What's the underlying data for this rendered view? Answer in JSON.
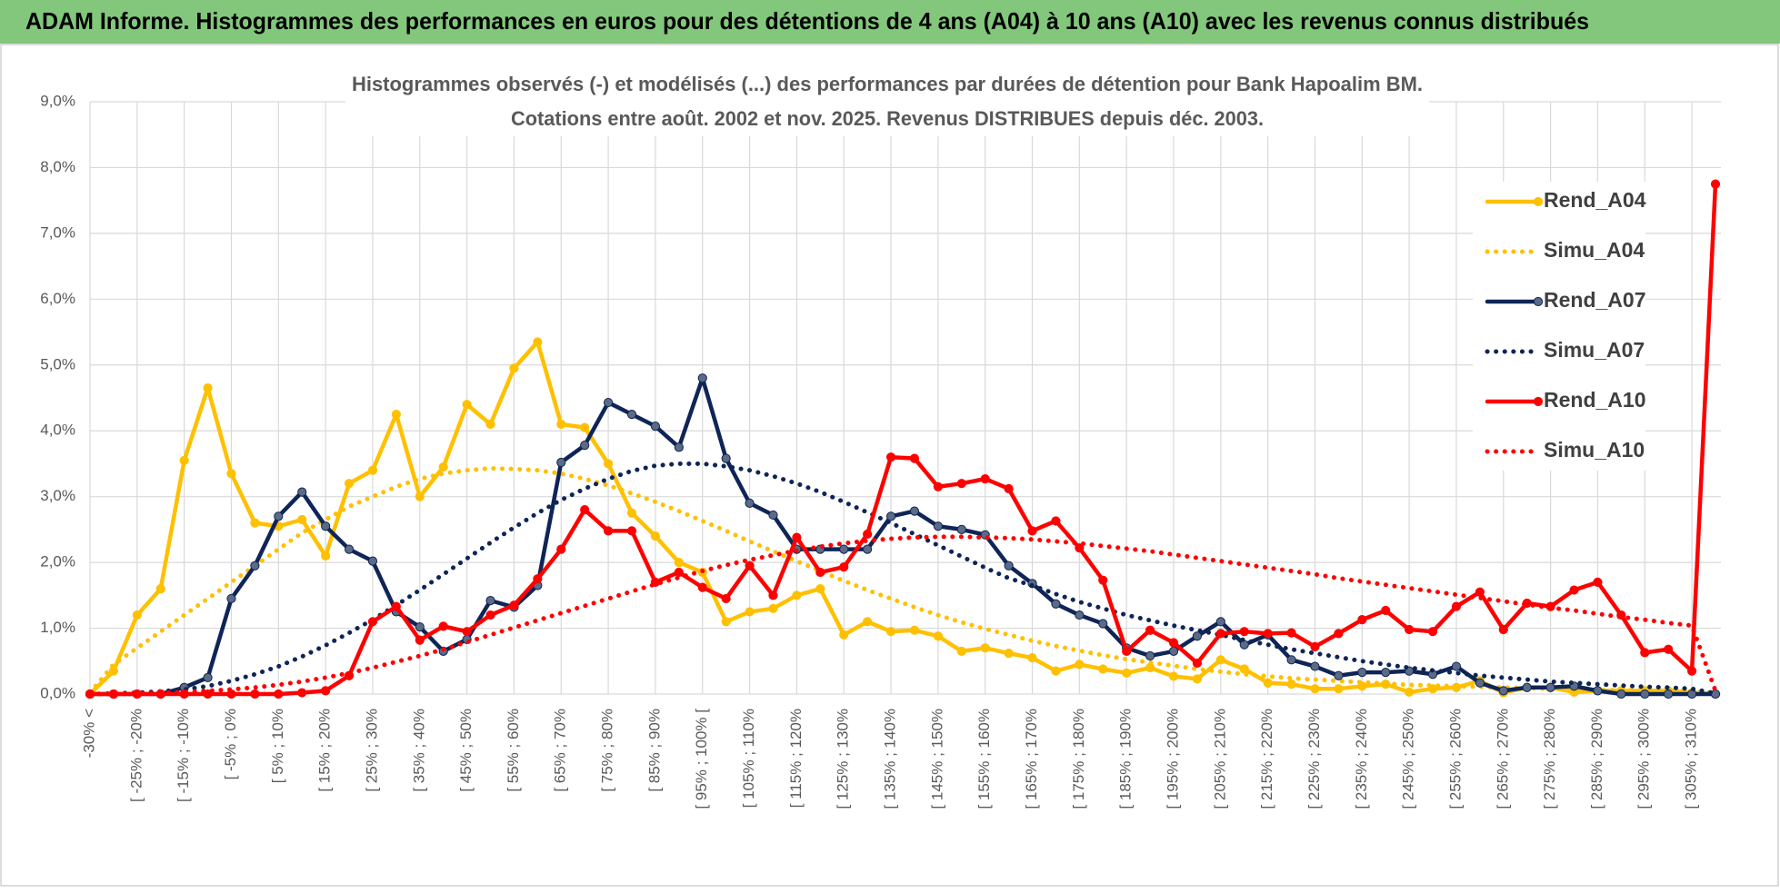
{
  "header": {
    "title": "ADAM Informe. Histogrammes des performances en euros pour des détentions de 4 ans (A04) à 10 ans (A10) avec les revenus connus distribués"
  },
  "chart_data": {
    "type": "line",
    "title": "Histogrammes observés (-) et modélisés (...) des performances par durées de détention pour Bank Hapoalim BM.",
    "subtitle": "Cotations entre août. 2002 et nov. 2025. Revenus DISTRIBUES depuis déc. 2003.",
    "categories": [
      "-30% <",
      null,
      "[ -25% ; -20%",
      null,
      "[ -15% ; -10%",
      null,
      "[ -5% ; 0%",
      null,
      "[ 5% ; 10%",
      null,
      "[ 15% ; 20%",
      null,
      "[ 25% ; 30%",
      null,
      "[ 35% ; 40%",
      null,
      "[ 45% ; 50%",
      null,
      "[ 55% ; 60%",
      null,
      "[ 65% ; 70%",
      null,
      "[ 75% ; 80%",
      null,
      "[ 85% ; 90%",
      null,
      "[ 95% ; 100% [",
      null,
      "[ 105% ; 110%",
      null,
      "[ 115% ; 120%",
      null,
      "[ 125% ; 130%",
      null,
      "[ 135% ; 140%",
      null,
      "[ 145% ; 150%",
      null,
      "[ 155% ; 160%",
      null,
      "[ 165% ; 170%",
      null,
      "[ 175% ; 180%",
      null,
      "[ 185% ; 190%",
      null,
      "[ 195% ; 200%",
      null,
      "[ 205% ; 210%",
      null,
      "[ 215% ; 220%",
      null,
      "[ 225% ; 230%",
      null,
      "[ 235% ; 240%",
      null,
      "[ 245% ; 250%",
      null,
      "[ 255% ; 260%",
      null,
      "[ 265% ; 270%",
      null,
      "[ 275% ; 280%",
      null,
      "[ 285% ; 290%",
      null,
      "[ 295% ; 300%",
      null,
      "[ 305% ; 310%",
      null
    ],
    "ylim": [
      0,
      9
    ],
    "yticks": [
      {
        "value": 0,
        "label": "0,0%"
      },
      {
        "value": 1,
        "label": "1,0%"
      },
      {
        "value": 2,
        "label": "2,0%"
      },
      {
        "value": 3,
        "label": "3,0%"
      },
      {
        "value": 4,
        "label": "4,0%"
      },
      {
        "value": 5,
        "label": "5,0%"
      },
      {
        "value": 6,
        "label": "6,0%"
      },
      {
        "value": 7,
        "label": "7,0%"
      },
      {
        "value": 8,
        "label": "8,0%"
      },
      {
        "value": 9,
        "label": "9,0%"
      }
    ],
    "grid": true,
    "legend": "right",
    "series": [
      {
        "name": "Rend_A04",
        "color": "#ffc000",
        "style": "solid",
        "markers": true,
        "marker_color": "#ffc000",
        "values": [
          0,
          0.35,
          1.2,
          1.6,
          3.55,
          4.65,
          3.35,
          2.6,
          2.55,
          2.65,
          2.1,
          3.2,
          3.4,
          4.25,
          3.0,
          3.45,
          4.4,
          4.1,
          4.95,
          5.35,
          4.1,
          4.05,
          3.5,
          2.75,
          2.4,
          2.0,
          1.85,
          1.1,
          1.25,
          1.3,
          1.5,
          1.6,
          0.9,
          1.1,
          0.95,
          0.97,
          0.88,
          0.65,
          0.7,
          0.62,
          0.55,
          0.35,
          0.45,
          0.38,
          0.32,
          0.4,
          0.27,
          0.23,
          0.52,
          0.38,
          0.17,
          0.15,
          0.08,
          0.08,
          0.12,
          0.15,
          0.03,
          0.08,
          0.1,
          0.2,
          0.02,
          0.1,
          0.1,
          0.03,
          0.05,
          0.05,
          0.05,
          0.05,
          0.02,
          0
        ]
      },
      {
        "name": "Simu_A04",
        "color": "#ffc000",
        "style": "dotted",
        "markers": false,
        "values": [
          0.02,
          0.45,
          0.7,
          0.95,
          1.2,
          1.45,
          1.7,
          1.95,
          2.2,
          2.45,
          2.65,
          2.85,
          3.0,
          3.15,
          3.27,
          3.35,
          3.4,
          3.43,
          3.42,
          3.4,
          3.35,
          3.27,
          3.17,
          3.05,
          2.92,
          2.78,
          2.63,
          2.48,
          2.32,
          2.17,
          2.02,
          1.87,
          1.72,
          1.58,
          1.45,
          1.32,
          1.2,
          1.09,
          0.99,
          0.9,
          0.81,
          0.73,
          0.66,
          0.59,
          0.53,
          0.48,
          0.43,
          0.38,
          0.34,
          0.3,
          0.27,
          0.24,
          0.22,
          0.2,
          0.18,
          0.16,
          0.14,
          0.13,
          0.12,
          0.11,
          0.1,
          0.09,
          0.08,
          0.07,
          0.06,
          0.06,
          0.05,
          0.05,
          0.04,
          0.01
        ]
      },
      {
        "name": "Rend_A07",
        "color": "#0f2557",
        "style": "solid",
        "markers": true,
        "marker_color": "#5b6b86",
        "values": [
          0,
          0,
          0,
          0,
          0.1,
          0.25,
          1.45,
          1.95,
          2.7,
          3.07,
          2.55,
          2.2,
          2.02,
          1.25,
          1.02,
          0.65,
          0.83,
          1.42,
          1.32,
          1.65,
          3.52,
          3.78,
          4.43,
          4.25,
          4.07,
          3.75,
          4.8,
          3.58,
          2.9,
          2.72,
          2.2,
          2.2,
          2.2,
          2.2,
          2.7,
          2.78,
          2.55,
          2.5,
          2.42,
          1.95,
          1.68,
          1.37,
          1.2,
          1.07,
          0.7,
          0.58,
          0.65,
          0.88,
          1.1,
          0.75,
          0.9,
          0.52,
          0.42,
          0.28,
          0.33,
          0.33,
          0.35,
          0.3,
          0.42,
          0.17,
          0.05,
          0.1,
          0.1,
          0.12,
          0.05,
          0,
          0,
          0,
          0,
          0
        ]
      },
      {
        "name": "Simu_A07",
        "color": "#0f2557",
        "style": "dotted",
        "markers": false,
        "values": [
          0,
          0.01,
          0.02,
          0.04,
          0.07,
          0.12,
          0.2,
          0.3,
          0.42,
          0.57,
          0.74,
          0.93,
          1.13,
          1.35,
          1.58,
          1.82,
          2.06,
          2.3,
          2.53,
          2.75,
          2.95,
          3.12,
          3.27,
          3.39,
          3.47,
          3.5,
          3.5,
          3.46,
          3.4,
          3.31,
          3.2,
          3.07,
          2.92,
          2.76,
          2.6,
          2.43,
          2.26,
          2.09,
          1.92,
          1.76,
          1.65,
          1.52,
          1.4,
          1.3,
          1.2,
          1.12,
          1.04,
          0.97,
          0.9,
          0.82,
          0.75,
          0.68,
          0.62,
          0.56,
          0.5,
          0.45,
          0.4,
          0.36,
          0.32,
          0.28,
          0.25,
          0.22,
          0.19,
          0.17,
          0.15,
          0.13,
          0.11,
          0.1,
          0.08,
          0.01
        ]
      },
      {
        "name": "Rend_A10",
        "color": "#ff0000",
        "style": "solid",
        "markers": true,
        "marker_color": "#ff0000",
        "values": [
          0,
          0,
          0,
          0,
          0,
          0,
          0,
          0,
          0,
          0.02,
          0.05,
          0.28,
          1.1,
          1.33,
          0.82,
          1.03,
          0.95,
          1.2,
          1.35,
          1.75,
          2.2,
          2.8,
          2.48,
          2.48,
          1.7,
          1.85,
          1.62,
          1.45,
          1.95,
          1.5,
          2.38,
          1.85,
          1.93,
          2.43,
          3.6,
          3.58,
          3.15,
          3.2,
          3.27,
          3.12,
          2.48,
          2.63,
          2.22,
          1.73,
          0.65,
          0.97,
          0.78,
          0.47,
          0.92,
          0.95,
          0.92,
          0.93,
          0.72,
          0.92,
          1.13,
          1.27,
          0.98,
          0.95,
          1.33,
          1.55,
          0.98,
          1.38,
          1.33,
          1.58,
          1.7,
          1.2,
          0.63,
          0.68,
          0.35,
          7.75
        ]
      },
      {
        "name": "Simu_A10",
        "color": "#ff0000",
        "style": "dotted",
        "markers": false,
        "values": [
          0,
          0,
          0.01,
          0.02,
          0.03,
          0.05,
          0.07,
          0.1,
          0.14,
          0.19,
          0.25,
          0.32,
          0.4,
          0.49,
          0.58,
          0.68,
          0.79,
          0.9,
          1.01,
          1.12,
          1.23,
          1.34,
          1.45,
          1.56,
          1.67,
          1.77,
          1.87,
          1.96,
          2.04,
          2.11,
          2.18,
          2.24,
          2.29,
          2.33,
          2.36,
          2.38,
          2.39,
          2.39,
          2.38,
          2.37,
          2.35,
          2.32,
          2.29,
          2.25,
          2.21,
          2.17,
          2.12,
          2.07,
          2.02,
          1.97,
          1.92,
          1.87,
          1.82,
          1.76,
          1.71,
          1.66,
          1.61,
          1.56,
          1.51,
          1.46,
          1.41,
          1.36,
          1.31,
          1.27,
          1.22,
          1.17,
          1.13,
          1.08,
          1.04,
          0.05
        ]
      }
    ]
  }
}
